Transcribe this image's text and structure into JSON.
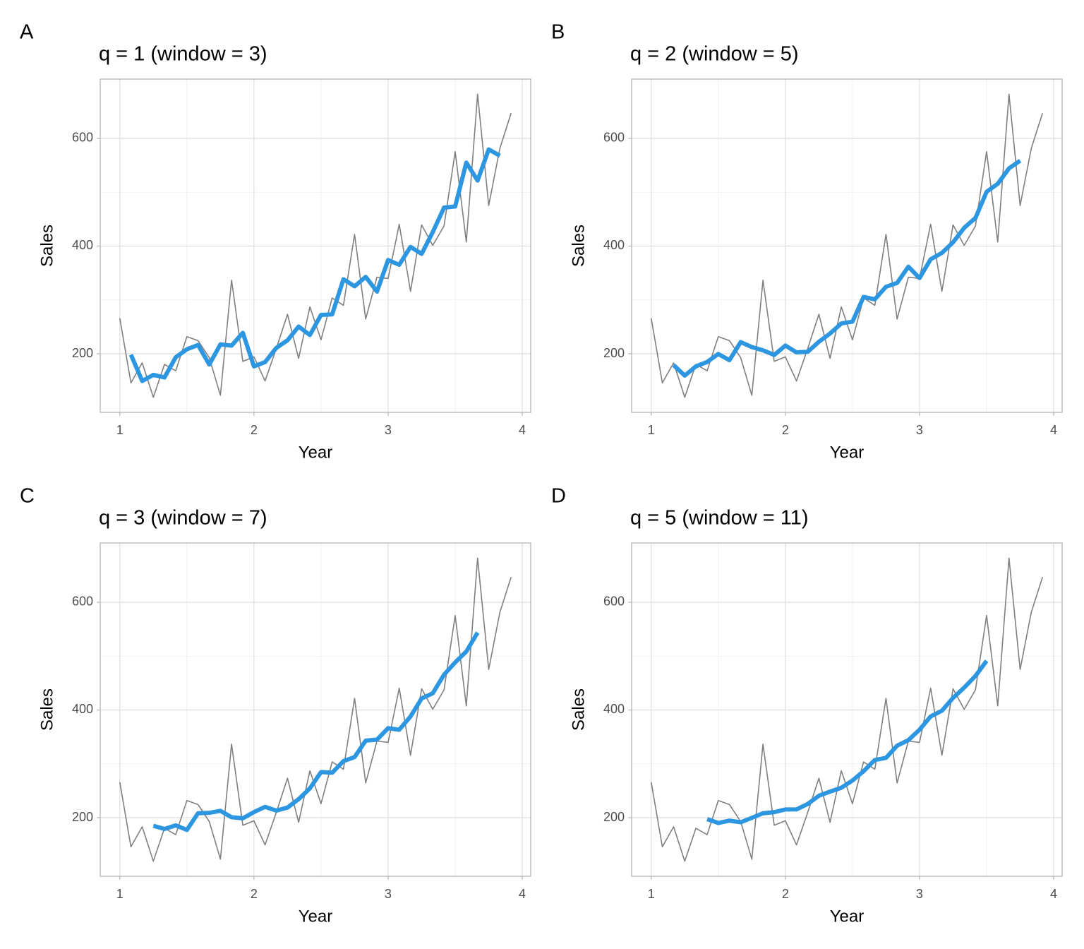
{
  "chart_data": [
    {
      "type": "line",
      "tag": "A",
      "title": "q = 1 (window = 3)",
      "x_label": "Year",
      "y_label": "Sales",
      "x": [
        1,
        1.083,
        1.167,
        1.25,
        1.333,
        1.417,
        1.5,
        1.583,
        1.667,
        1.75,
        1.833,
        1.917,
        2,
        2.083,
        2.167,
        2.25,
        2.333,
        2.417,
        2.5,
        2.583,
        2.667,
        2.75,
        2.833,
        2.917,
        3,
        3.083,
        3.167,
        3.25,
        3.333,
        3.417,
        3.5,
        3.583,
        3.667,
        3.75,
        3.833,
        3.917
      ],
      "series": [
        {
          "color": "#7f7f7f",
          "values": [
            266.0,
            145.9,
            183.1,
            119.3,
            180.3,
            168.5,
            231.8,
            224.5,
            192.8,
            122.9,
            336.5,
            185.9,
            194.3,
            149.5,
            210.1,
            273.3,
            191.4,
            287.0,
            226.0,
            303.6,
            289.9,
            421.6,
            264.5,
            342.3,
            339.7,
            440.4,
            315.9,
            439.3,
            401.3,
            437.4,
            575.5,
            407.6,
            682.0,
            475.3,
            581.3,
            646.9
          ]
        },
        {
          "color": "#2c96e0",
          "values": [
            null,
            198.3,
            149.4,
            160.9,
            156.0,
            193.5,
            208.3,
            216.4,
            180.1,
            217.4,
            215.1,
            238.9,
            176.6,
            184.6,
            211.0,
            224.9,
            250.6,
            234.8,
            272.2,
            273.2,
            338.4,
            325.3,
            342.8,
            315.5,
            374.1,
            365.3,
            398.5,
            385.5,
            426.0,
            471.4,
            473.5,
            555.0,
            521.6,
            579.5,
            567.8,
            null
          ]
        }
      ],
      "xlim": [
        0.854,
        4.063
      ],
      "ylim": [
        91.2,
        710.1
      ],
      "xticks": [
        1,
        2,
        3,
        4
      ],
      "yticks": [
        200,
        400,
        600
      ],
      "grid": true
    },
    {
      "type": "line",
      "tag": "B",
      "title": "q = 2 (window = 5)",
      "x_label": "Year",
      "y_label": "Sales",
      "x": [
        1,
        1.083,
        1.167,
        1.25,
        1.333,
        1.417,
        1.5,
        1.583,
        1.667,
        1.75,
        1.833,
        1.917,
        2,
        2.083,
        2.167,
        2.25,
        2.333,
        2.417,
        2.5,
        2.583,
        2.667,
        2.75,
        2.833,
        2.917,
        3,
        3.083,
        3.167,
        3.25,
        3.333,
        3.417,
        3.5,
        3.583,
        3.667,
        3.75,
        3.833,
        3.917
      ],
      "series": [
        {
          "color": "#7f7f7f",
          "values": [
            266.0,
            145.9,
            183.1,
            119.3,
            180.3,
            168.5,
            231.8,
            224.5,
            192.8,
            122.9,
            336.5,
            185.9,
            194.3,
            149.5,
            210.1,
            273.3,
            191.4,
            287.0,
            226.0,
            303.6,
            289.9,
            421.6,
            264.5,
            342.3,
            339.7,
            440.4,
            315.9,
            439.3,
            401.3,
            437.4,
            575.5,
            407.6,
            682.0,
            475.3,
            581.3,
            646.9
          ]
        },
        {
          "color": "#2c96e0",
          "values": [
            null,
            null,
            178.9,
            159.4,
            176.6,
            184.9,
            199.6,
            188.1,
            221.7,
            212.5,
            206.5,
            197.8,
            215.3,
            202.6,
            203.7,
            222.3,
            237.6,
            256.3,
            259.6,
            305.6,
            301.1,
            324.4,
            331.6,
            361.7,
            340.6,
            375.5,
            387.3,
            406.9,
            433.9,
            452.2,
            500.8,
            515.6,
            544.3,
            558.6,
            null,
            null
          ]
        }
      ],
      "xlim": [
        0.854,
        4.063
      ],
      "ylim": [
        91.2,
        710.1
      ],
      "xticks": [
        1,
        2,
        3,
        4
      ],
      "yticks": [
        200,
        400,
        600
      ],
      "grid": true
    },
    {
      "type": "line",
      "tag": "C",
      "title": "q = 3 (window = 7)",
      "x_label": "Year",
      "y_label": "Sales",
      "x": [
        1,
        1.083,
        1.167,
        1.25,
        1.333,
        1.417,
        1.5,
        1.583,
        1.667,
        1.75,
        1.833,
        1.917,
        2,
        2.083,
        2.167,
        2.25,
        2.333,
        2.417,
        2.5,
        2.583,
        2.667,
        2.75,
        2.833,
        2.917,
        3,
        3.083,
        3.167,
        3.25,
        3.333,
        3.417,
        3.5,
        3.583,
        3.667,
        3.75,
        3.833,
        3.917
      ],
      "series": [
        {
          "color": "#7f7f7f",
          "values": [
            266.0,
            145.9,
            183.1,
            119.3,
            180.3,
            168.5,
            231.8,
            224.5,
            192.8,
            122.9,
            336.5,
            185.9,
            194.3,
            149.5,
            210.1,
            273.3,
            191.4,
            287.0,
            226.0,
            303.6,
            289.9,
            421.6,
            264.5,
            342.3,
            339.7,
            440.4,
            315.9,
            439.3,
            401.3,
            437.4,
            575.5,
            407.6,
            682.0,
            475.3,
            581.3,
            646.9
          ]
        },
        {
          "color": "#2c96e0",
          "values": [
            null,
            null,
            null,
            185.0,
            179.1,
            185.8,
            177.2,
            208.2,
            209.0,
            212.7,
            200.9,
            198.9,
            210.4,
            220.1,
            213.1,
            218.8,
            234.4,
            254.5,
            284.7,
            283.4,
            305.0,
            312.5,
            343.1,
            344.9,
            366.2,
            363.3,
            388.0,
            421.4,
            431.1,
            465.6,
            488.3,
            508.6,
            543.7,
            null,
            null,
            null
          ]
        }
      ],
      "xlim": [
        0.854,
        4.063
      ],
      "ylim": [
        91.2,
        710.1
      ],
      "xticks": [
        1,
        2,
        3,
        4
      ],
      "yticks": [
        200,
        400,
        600
      ],
      "grid": true
    },
    {
      "type": "line",
      "tag": "D",
      "title": "q = 5 (window = 11)",
      "x_label": "Year",
      "y_label": "Sales",
      "x": [
        1,
        1.083,
        1.167,
        1.25,
        1.333,
        1.417,
        1.5,
        1.583,
        1.667,
        1.75,
        1.833,
        1.917,
        2,
        2.083,
        2.167,
        2.25,
        2.333,
        2.417,
        2.5,
        2.583,
        2.667,
        2.75,
        2.833,
        2.917,
        3,
        3.083,
        3.167,
        3.25,
        3.333,
        3.417,
        3.5,
        3.583,
        3.667,
        3.75,
        3.833,
        3.917
      ],
      "series": [
        {
          "color": "#7f7f7f",
          "values": [
            266.0,
            145.9,
            183.1,
            119.3,
            180.3,
            168.5,
            231.8,
            224.5,
            192.8,
            122.9,
            336.5,
            185.9,
            194.3,
            149.5,
            210.1,
            273.3,
            191.4,
            287.0,
            226.0,
            303.6,
            289.9,
            421.6,
            264.5,
            342.3,
            339.7,
            440.4,
            315.9,
            439.3,
            401.3,
            437.4,
            575.5,
            407.6,
            682.0,
            475.3,
            581.3,
            646.9
          ]
        },
        {
          "color": "#2c96e0",
          "values": [
            null,
            null,
            null,
            null,
            null,
            197.4,
            190.1,
            194.5,
            191.5,
            199.7,
            208.2,
            210.3,
            215.3,
            215.4,
            225.5,
            240.7,
            248.4,
            255.6,
            269.0,
            286.3,
            307.2,
            311.1,
            333.7,
            344.0,
            363.3,
            388.0,
            398.7,
            422.4,
            441.5,
            463.2,
            491.2,
            null,
            null,
            null,
            null,
            null
          ]
        }
      ],
      "xlim": [
        0.854,
        4.063
      ],
      "ylim": [
        91.2,
        710.1
      ],
      "xticks": [
        1,
        2,
        3,
        4
      ],
      "yticks": [
        200,
        400,
        600
      ],
      "grid": true
    }
  ]
}
